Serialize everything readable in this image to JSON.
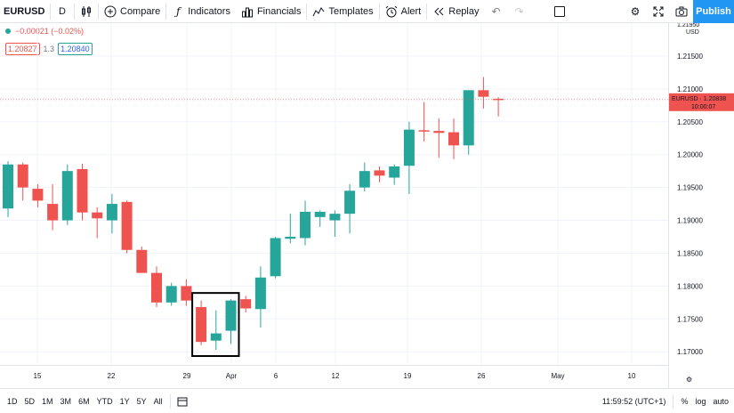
{
  "toolbar": {
    "symbol": "EURUSD",
    "interval": "D",
    "compare": "Compare",
    "indicators": "Indicators",
    "financials": "Financials",
    "templates": "Templates",
    "alert": "Alert",
    "replay": "Replay",
    "publish": "Publish"
  },
  "legend": {
    "change": "−0.00021 (−0.02%)",
    "bid": "1.20827",
    "spread": "1.3",
    "ask": "1.20840"
  },
  "price_axis": {
    "currency": "USD",
    "ticks": [
      "1.21500",
      "1.21000",
      "1.20500",
      "1.20000",
      "1.19500",
      "1.19000",
      "1.18500",
      "1.18000",
      "1.17500",
      "1.17000"
    ],
    "top_partial": "1.21950",
    "last_label": "EURUSD",
    "last_price": "1.20838",
    "countdown": "10:00:07"
  },
  "time_axis": [
    "15",
    "22",
    "29",
    "Apr",
    "6",
    "12",
    "19",
    "26",
    "May",
    "10"
  ],
  "bottombar": {
    "ranges": [
      "1D",
      "5D",
      "1M",
      "3M",
      "6M",
      "YTD",
      "1Y",
      "5Y",
      "All"
    ],
    "clock": "11:59:52 (UTC+1)",
    "percent": "%",
    "log": "log",
    "auto": "auto"
  },
  "colors": {
    "up": "#26a69a",
    "down": "#ef5350",
    "accent": "#2196f3"
  },
  "chart_data": {
    "type": "candlestick",
    "symbol": "EURUSD",
    "interval": "D",
    "ylim": [
      1.168,
      1.22
    ],
    "candles": [
      {
        "o": 1.1918,
        "h": 1.199,
        "l": 1.1905,
        "c": 1.1985
      },
      {
        "o": 1.1985,
        "h": 1.1988,
        "l": 1.193,
        "c": 1.195
      },
      {
        "o": 1.1948,
        "h": 1.1955,
        "l": 1.192,
        "c": 1.193
      },
      {
        "o": 1.1925,
        "h": 1.1955,
        "l": 1.1885,
        "c": 1.19
      },
      {
        "o": 1.19,
        "h": 1.1985,
        "l": 1.1893,
        "c": 1.1975
      },
      {
        "o": 1.1978,
        "h": 1.1986,
        "l": 1.19,
        "c": 1.1912
      },
      {
        "o": 1.1912,
        "h": 1.192,
        "l": 1.1873,
        "c": 1.1903
      },
      {
        "o": 1.19,
        "h": 1.194,
        "l": 1.188,
        "c": 1.1925
      },
      {
        "o": 1.1928,
        "h": 1.193,
        "l": 1.185,
        "c": 1.1855
      },
      {
        "o": 1.1855,
        "h": 1.186,
        "l": 1.182,
        "c": 1.182
      },
      {
        "o": 1.182,
        "h": 1.183,
        "l": 1.1768,
        "c": 1.1775
      },
      {
        "o": 1.1775,
        "h": 1.1805,
        "l": 1.177,
        "c": 1.18
      },
      {
        "o": 1.18,
        "h": 1.181,
        "l": 1.177,
        "c": 1.1778
      },
      {
        "o": 1.1768,
        "h": 1.1778,
        "l": 1.171,
        "c": 1.1715
      },
      {
        "o": 1.1717,
        "h": 1.1763,
        "l": 1.1703,
        "c": 1.1728
      },
      {
        "o": 1.1732,
        "h": 1.178,
        "l": 1.1712,
        "c": 1.1778
      },
      {
        "o": 1.178,
        "h": 1.1785,
        "l": 1.176,
        "c": 1.1766
      },
      {
        "o": 1.1765,
        "h": 1.183,
        "l": 1.1737,
        "c": 1.1813
      },
      {
        "o": 1.1815,
        "h": 1.1875,
        "l": 1.1812,
        "c": 1.1873
      },
      {
        "o": 1.1872,
        "h": 1.191,
        "l": 1.1865,
        "c": 1.1875
      },
      {
        "o": 1.1873,
        "h": 1.193,
        "l": 1.1862,
        "c": 1.1913
      },
      {
        "o": 1.1905,
        "h": 1.1915,
        "l": 1.189,
        "c": 1.1913
      },
      {
        "o": 1.19,
        "h": 1.1915,
        "l": 1.1875,
        "c": 1.191
      },
      {
        "o": 1.191,
        "h": 1.1955,
        "l": 1.188,
        "c": 1.1945
      },
      {
        "o": 1.195,
        "h": 1.1988,
        "l": 1.1944,
        "c": 1.1975
      },
      {
        "o": 1.1976,
        "h": 1.1982,
        "l": 1.1958,
        "c": 1.1968
      },
      {
        "o": 1.1965,
        "h": 1.1985,
        "l": 1.1954,
        "c": 1.1982
      },
      {
        "o": 1.1983,
        "h": 1.205,
        "l": 1.194,
        "c": 1.2038
      },
      {
        "o": 1.2037,
        "h": 1.208,
        "l": 1.202,
        "c": 1.2035
      },
      {
        "o": 1.2036,
        "h": 1.2055,
        "l": 1.1995,
        "c": 1.2033
      },
      {
        "o": 1.2034,
        "h": 1.2055,
        "l": 1.1993,
        "c": 1.2014
      },
      {
        "o": 1.2014,
        "h": 1.2098,
        "l": 1.2,
        "c": 1.2098
      },
      {
        "o": 1.2098,
        "h": 1.2118,
        "l": 1.207,
        "c": 1.2088
      },
      {
        "o": 1.2085,
        "h": 1.2087,
        "l": 1.2058,
        "c": 1.2083
      }
    ],
    "highlight_candles": [
      13,
      15
    ]
  }
}
